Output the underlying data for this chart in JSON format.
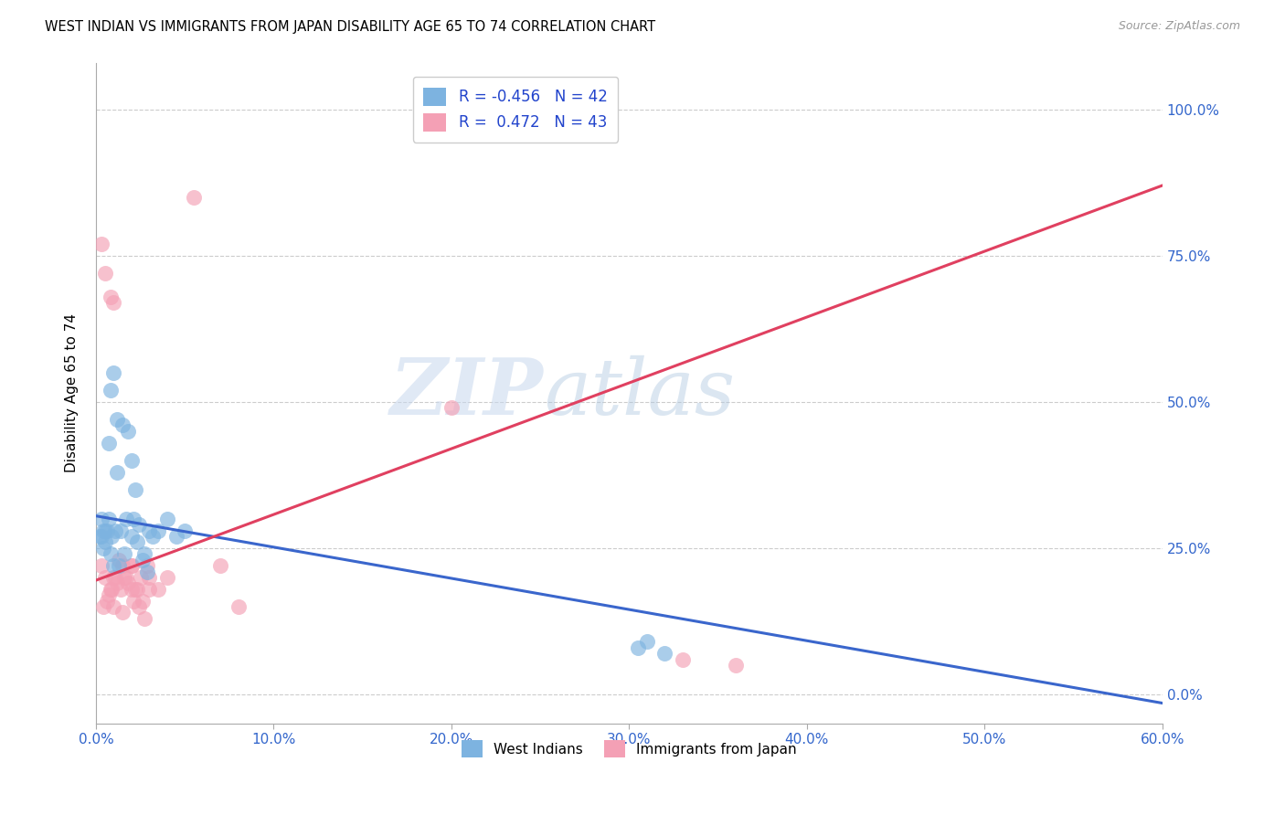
{
  "title": "WEST INDIAN VS IMMIGRANTS FROM JAPAN DISABILITY AGE 65 TO 74 CORRELATION CHART",
  "source": "Source: ZipAtlas.com",
  "xlabel_ticks": [
    "0.0%",
    "10.0%",
    "20.0%",
    "30.0%",
    "40.0%",
    "50.0%",
    "60.0%"
  ],
  "xlabel_vals": [
    0.0,
    10.0,
    20.0,
    30.0,
    40.0,
    50.0,
    60.0
  ],
  "ylabel_ticks": [
    "0.0%",
    "25.0%",
    "50.0%",
    "75.0%",
    "100.0%"
  ],
  "ylabel_vals": [
    0.0,
    25.0,
    50.0,
    75.0,
    100.0
  ],
  "xmin": 0.0,
  "xmax": 60.0,
  "ymin": -5.0,
  "ymax": 108.0,
  "blue_R": "-0.456",
  "blue_N": "42",
  "pink_R": "0.472",
  "pink_N": "43",
  "blue_color": "#7db3e0",
  "pink_color": "#f4a0b5",
  "blue_line_color": "#3a66cc",
  "pink_line_color": "#e04060",
  "legend_label_1": "West Indians",
  "legend_label_2": "Immigrants from Japan",
  "watermark_zip": "ZIP",
  "watermark_atlas": "atlas",
  "ylabel": "Disability Age 65 to 74",
  "blue_line_x0": 0.0,
  "blue_line_y0": 30.5,
  "blue_line_x1": 60.0,
  "blue_line_y1": -1.5,
  "pink_line_x0": 0.0,
  "pink_line_y0": 19.5,
  "pink_line_x1": 60.0,
  "pink_line_y1": 87.0,
  "blue_x": [
    0.3,
    0.5,
    0.7,
    0.8,
    1.0,
    1.2,
    1.5,
    1.8,
    2.0,
    2.2,
    0.4,
    0.6,
    0.9,
    1.1,
    1.4,
    1.7,
    2.1,
    2.4,
    2.7,
    3.0,
    0.3,
    0.5,
    0.8,
    1.0,
    1.3,
    1.6,
    2.0,
    2.3,
    2.6,
    2.9,
    3.2,
    3.5,
    4.0,
    4.5,
    5.0,
    0.2,
    0.4,
    0.7,
    1.2,
    30.5,
    31.0,
    32.0
  ],
  "blue_y": [
    30,
    28,
    30,
    52,
    55,
    47,
    46,
    45,
    40,
    35,
    28,
    28,
    27,
    28,
    28,
    30,
    30,
    29,
    24,
    28,
    27,
    26,
    24,
    22,
    22,
    24,
    27,
    26,
    23,
    21,
    27,
    28,
    30,
    27,
    28,
    27,
    25,
    43,
    38,
    8,
    9,
    7
  ],
  "pink_x": [
    0.3,
    0.5,
    0.7,
    0.8,
    1.0,
    1.2,
    1.5,
    1.8,
    2.0,
    2.2,
    0.4,
    0.6,
    0.9,
    1.1,
    1.4,
    1.7,
    2.1,
    2.4,
    2.7,
    3.0,
    0.3,
    0.5,
    0.8,
    1.0,
    1.3,
    1.6,
    2.0,
    2.3,
    2.6,
    2.9,
    1.0,
    1.5,
    2.0,
    2.5,
    3.0,
    3.5,
    4.0,
    5.5,
    7.0,
    8.0,
    36.0,
    33.0,
    20.0
  ],
  "pink_y": [
    22,
    20,
    17,
    18,
    20,
    19,
    22,
    19,
    22,
    18,
    15,
    16,
    18,
    20,
    18,
    20,
    16,
    15,
    13,
    20,
    77,
    72,
    68,
    67,
    23,
    20,
    18,
    18,
    16,
    22,
    15,
    14,
    22,
    20,
    18,
    18,
    20,
    85,
    22,
    15,
    5,
    6,
    49
  ]
}
